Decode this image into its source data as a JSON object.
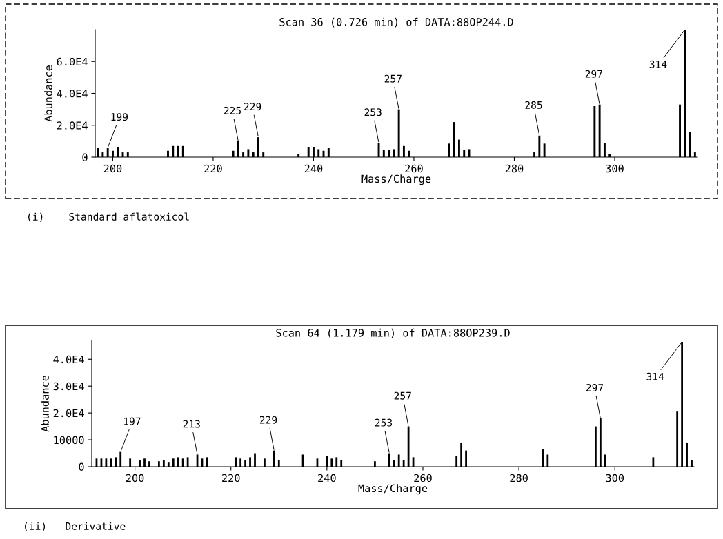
{
  "chart_data": [
    {
      "type": "bar",
      "title": "Scan 36 (0.726 min) of DATA:88OP244.D",
      "xlabel": "Mass/Charge",
      "ylabel": "Abundance",
      "x": [
        197,
        198,
        199,
        200,
        201,
        202,
        203,
        211,
        212,
        213,
        214,
        224,
        225,
        226,
        227,
        228,
        229,
        230,
        237,
        239,
        240,
        241,
        242,
        243,
        253,
        254,
        255,
        256,
        257,
        258,
        259,
        267,
        268,
        269,
        270,
        271,
        284,
        285,
        286,
        296,
        297,
        298,
        299,
        313,
        314,
        315,
        316
      ],
      "series": [
        {
          "color": "#000000",
          "values": [
            6000,
            3000,
            6000,
            4000,
            6500,
            3000,
            3000,
            4000,
            7000,
            7000,
            7000,
            4000,
            10000,
            3000,
            5000,
            3000,
            12500,
            3000,
            2000,
            6500,
            6500,
            5000,
            4000,
            6000,
            9000,
            4500,
            4500,
            5000,
            30000,
            7000,
            4000,
            8500,
            22000,
            11000,
            4500,
            5000,
            3000,
            13500,
            8500,
            32000,
            33000,
            9000,
            2000,
            33000,
            80000,
            16000,
            3000
          ]
        }
      ],
      "xlim": [
        196.5,
        316.5
      ],
      "ylim": [
        0,
        80000
      ],
      "xticks": [
        200,
        220,
        240,
        260,
        280,
        300
      ],
      "yticks": [
        0,
        {
          "value": 20000,
          "label": "2.0E4"
        },
        {
          "value": 40000,
          "label": "4.0E4"
        },
        {
          "value": 60000,
          "label": "6.0E4"
        }
      ],
      "annotations": [
        {
          "text": "199",
          "x": 199,
          "y": 6000
        },
        {
          "text": "225",
          "x": 225,
          "y": 10000
        },
        {
          "text": "229",
          "x": 229,
          "y": 12500
        },
        {
          "text": "253",
          "x": 253,
          "y": 9000
        },
        {
          "text": "257",
          "x": 257,
          "y": 30000
        },
        {
          "text": "285",
          "x": 285,
          "y": 13500
        },
        {
          "text": "297",
          "x": 297,
          "y": 33000
        },
        {
          "text": "314",
          "x": 314,
          "y": 80000
        },
        "(i)    Standard aflatoxicol"
      ]
    },
    {
      "type": "bar",
      "title": "Scan 64 (1.179 min) of DATA:88OP239.D",
      "xlabel": "Mass/Charge",
      "ylabel": "Abundance",
      "x": [
        192,
        193,
        194,
        195,
        196,
        197,
        199,
        201,
        202,
        203,
        205,
        206,
        207,
        208,
        209,
        210,
        211,
        213,
        214,
        215,
        221,
        222,
        223,
        224,
        225,
        227,
        229,
        230,
        235,
        238,
        240,
        241,
        242,
        243,
        250,
        253,
        254,
        255,
        256,
        257,
        258,
        267,
        268,
        269,
        285,
        286,
        296,
        297,
        298,
        308,
        313,
        314,
        315,
        316
      ],
      "series": [
        {
          "color": "#000000",
          "values": [
            3000,
            3000,
            3000,
            3000,
            3500,
            5500,
            3000,
            2500,
            3000,
            2000,
            2000,
            2500,
            1500,
            3000,
            3500,
            3000,
            3500,
            4500,
            3000,
            3500,
            3500,
            3000,
            2500,
            3500,
            5000,
            3000,
            6000,
            2500,
            4500,
            3000,
            4000,
            3000,
            3500,
            2500,
            2000,
            5000,
            2500,
            4500,
            2500,
            15000,
            3500,
            4000,
            9000,
            6000,
            6500,
            4500,
            15000,
            18000,
            4500,
            3500,
            20500,
            46500,
            9000,
            2500
          ]
        }
      ],
      "xlim": [
        191,
        316.5
      ],
      "ylim": [
        0,
        47000
      ],
      "xticks": [
        200,
        220,
        240,
        260,
        280,
        300
      ],
      "yticks": [
        0,
        10000,
        {
          "value": 20000,
          "label": "2.0E4"
        },
        {
          "value": 30000,
          "label": "3.0E4"
        },
        {
          "value": 40000,
          "label": "4.0E4"
        }
      ],
      "annotations": [
        {
          "text": "197",
          "x": 197,
          "y": 5500
        },
        {
          "text": "213",
          "x": 213,
          "y": 4500
        },
        {
          "text": "229",
          "x": 229,
          "y": 6000
        },
        {
          "text": "253",
          "x": 253,
          "y": 5000
        },
        {
          "text": "257",
          "x": 257,
          "y": 15000
        },
        {
          "text": "297",
          "x": 297,
          "y": 18000
        },
        {
          "text": "314",
          "x": 314,
          "y": 46500
        },
        "(ii)   Derivative"
      ]
    }
  ]
}
